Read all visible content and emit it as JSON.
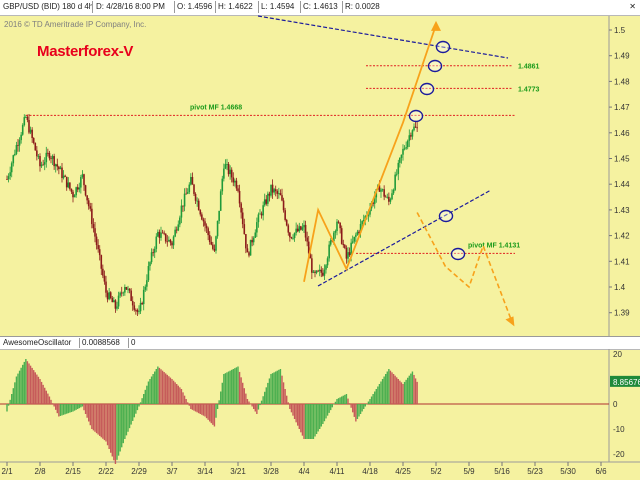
{
  "header": {
    "symbol": "GBP/USD (BID) 180 d 4h",
    "date": "D: 4/28/16 8:00 PM",
    "open": "O: 1.4596",
    "high": "H: 1.4622",
    "low": "L: 1.4594",
    "close": "C: 1.4613",
    "range": "R: 0.0028",
    "copyright": "2016 © TD Ameritrade IP Company, Inc.",
    "brand": "Masterforex-V"
  },
  "oscillator": {
    "name": "AwesomeOscillator",
    "value": "0.0088568",
    "zero": "0",
    "last_value": "8.85676"
  },
  "colors": {
    "background": "#f5f2a0",
    "bull_candle": "#1f9a3a",
    "bear_candle": "#8b1a1a",
    "pivot_line": "#e02020",
    "projection": "#f7a21b",
    "trend_line": "#1a1a9c",
    "label_green": "#1a9a1a",
    "ao_red": "#c65a5a",
    "ao_green": "#4caf50"
  },
  "chart_data": [
    {
      "type": "candlestick",
      "title": "GBP/USD (BID) 180 d 4h",
      "x_ticks": [
        "2/1",
        "2/8",
        "2/15",
        "2/22",
        "2/29",
        "3/7",
        "3/14",
        "3/21",
        "3/28",
        "4/4",
        "4/11",
        "4/18",
        "4/25",
        "5/2",
        "5/9",
        "5/16",
        "5/23",
        "5/30",
        "6/6"
      ],
      "y_ticks": [
        1.39,
        1.4,
        1.41,
        1.42,
        1.43,
        1.44,
        1.45,
        1.46,
        1.47,
        1.48,
        1.49,
        1.5
      ],
      "ylim": [
        1.385,
        1.505
      ],
      "grid": false,
      "price_path": [
        {
          "date": "2/1",
          "price": 1.442
        },
        {
          "date": "2/3",
          "price": 1.455
        },
        {
          "date": "2/5",
          "price": 1.466
        },
        {
          "date": "2/8",
          "price": 1.447
        },
        {
          "date": "2/10",
          "price": 1.452
        },
        {
          "date": "2/12",
          "price": 1.446
        },
        {
          "date": "2/15",
          "price": 1.436
        },
        {
          "date": "2/17",
          "price": 1.443
        },
        {
          "date": "2/19",
          "price": 1.426
        },
        {
          "date": "2/22",
          "price": 1.398
        },
        {
          "date": "2/24",
          "price": 1.392
        },
        {
          "date": "2/26",
          "price": 1.401
        },
        {
          "date": "2/29",
          "price": 1.389
        },
        {
          "date": "3/2",
          "price": 1.407
        },
        {
          "date": "3/4",
          "price": 1.421
        },
        {
          "date": "3/7",
          "price": 1.417
        },
        {
          "date": "3/9",
          "price": 1.431
        },
        {
          "date": "3/11",
          "price": 1.441
        },
        {
          "date": "3/14",
          "price": 1.424
        },
        {
          "date": "3/16",
          "price": 1.413
        },
        {
          "date": "3/18",
          "price": 1.448
        },
        {
          "date": "3/21",
          "price": 1.439
        },
        {
          "date": "3/23",
          "price": 1.412
        },
        {
          "date": "3/25",
          "price": 1.425
        },
        {
          "date": "3/28",
          "price": 1.438
        },
        {
          "date": "3/30",
          "price": 1.435
        },
        {
          "date": "4/1",
          "price": 1.42
        },
        {
          "date": "4/4",
          "price": 1.423
        },
        {
          "date": "4/6",
          "price": 1.404
        },
        {
          "date": "4/8",
          "price": 1.406
        },
        {
          "date": "4/11",
          "price": 1.426
        },
        {
          "date": "4/13",
          "price": 1.411
        },
        {
          "date": "4/15",
          "price": 1.42
        },
        {
          "date": "4/18",
          "price": 1.431
        },
        {
          "date": "4/20",
          "price": 1.439
        },
        {
          "date": "4/22",
          "price": 1.433
        },
        {
          "date": "4/25",
          "price": 1.453
        },
        {
          "date": "4/27",
          "price": 1.462
        },
        {
          "date": "4/28",
          "price": 1.4613
        }
      ],
      "horizontal_levels": [
        {
          "label": "pivot MF 1.4668",
          "value": 1.4668
        },
        {
          "label": "1.4861",
          "value": 1.4861
        },
        {
          "label": "1.4773",
          "value": 1.4773
        },
        {
          "label": "pivot MF 1.4131",
          "value": 1.4131
        }
      ],
      "zigzag": [
        {
          "date": "4/4",
          "price": 1.402
        },
        {
          "date": "4/7",
          "price": 1.43
        },
        {
          "date": "4/13",
          "price": 1.407
        },
        {
          "date": "4/25",
          "price": 1.464
        },
        {
          "date": "5/2",
          "price": 1.502
        }
      ],
      "bearish_projection": [
        {
          "date": "4/28",
          "price": 1.429
        },
        {
          "date": "5/4",
          "price": 1.408
        },
        {
          "date": "5/9",
          "price": 1.4
        },
        {
          "date": "5/12",
          "price": 1.416
        },
        {
          "date": "5/18",
          "price": 1.387
        }
      ]
    },
    {
      "type": "bar",
      "title": "AwesomeOscillator",
      "y_ticks": [
        -20,
        -10,
        0,
        10,
        20
      ],
      "ylim": [
        -24,
        22
      ],
      "series": [
        {
          "name": "AwesomeOscillator",
          "points": [
            {
              "date": "2/1",
              "value": -3
            },
            {
              "date": "2/3",
              "value": 11
            },
            {
              "date": "2/5",
              "value": 18
            },
            {
              "date": "2/8",
              "value": 10
            },
            {
              "date": "2/10",
              "value": 3
            },
            {
              "date": "2/12",
              "value": -5
            },
            {
              "date": "2/15",
              "value": -3
            },
            {
              "date": "2/17",
              "value": -1
            },
            {
              "date": "2/19",
              "value": -10
            },
            {
              "date": "2/22",
              "value": -15
            },
            {
              "date": "2/24",
              "value": -24
            },
            {
              "date": "2/26",
              "value": -14
            },
            {
              "date": "2/29",
              "value": -1
            },
            {
              "date": "3/2",
              "value": 9
            },
            {
              "date": "3/4",
              "value": 15
            },
            {
              "date": "3/7",
              "value": 10
            },
            {
              "date": "3/9",
              "value": 6
            },
            {
              "date": "3/11",
              "value": -2
            },
            {
              "date": "3/14",
              "value": -5
            },
            {
              "date": "3/16",
              "value": -9
            },
            {
              "date": "3/18",
              "value": 12
            },
            {
              "date": "3/21",
              "value": 15
            },
            {
              "date": "3/23",
              "value": 2
            },
            {
              "date": "3/25",
              "value": -4
            },
            {
              "date": "3/28",
              "value": 12
            },
            {
              "date": "3/30",
              "value": 14
            },
            {
              "date": "4/1",
              "value": -2
            },
            {
              "date": "4/4",
              "value": -14
            },
            {
              "date": "4/6",
              "value": -14
            },
            {
              "date": "4/8",
              "value": -8
            },
            {
              "date": "4/11",
              "value": 2
            },
            {
              "date": "4/13",
              "value": 4
            },
            {
              "date": "4/15",
              "value": -7
            },
            {
              "date": "4/18",
              "value": 2
            },
            {
              "date": "4/20",
              "value": 8
            },
            {
              "date": "4/22",
              "value": 14
            },
            {
              "date": "4/25",
              "value": 8
            },
            {
              "date": "4/27",
              "value": 13
            },
            {
              "date": "4/28",
              "value": 8.85676
            }
          ]
        }
      ]
    }
  ]
}
